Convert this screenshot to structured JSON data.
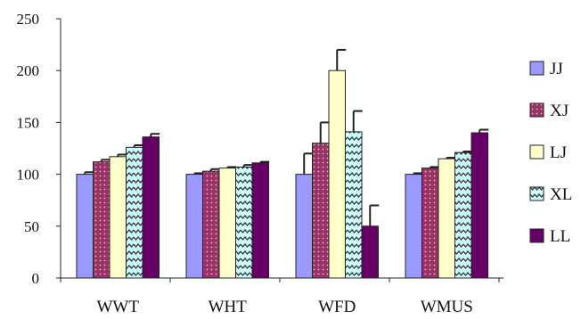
{
  "chart_data": {
    "type": "bar",
    "title": "",
    "xlabel": "",
    "ylabel": "",
    "ylim": [
      0,
      250
    ],
    "yticks": [
      0,
      50,
      100,
      150,
      200,
      250
    ],
    "grid": false,
    "legend_position": "right",
    "categories": [
      "WWT",
      "WHT",
      "WFD",
      "WMUS"
    ],
    "series": [
      {
        "name": "JJ",
        "color": "#9999ff",
        "pattern": "solid",
        "values": [
          100,
          100,
          100,
          100
        ],
        "errors": [
          2,
          1,
          20,
          1
        ]
      },
      {
        "name": "XJ",
        "color": "#993366",
        "pattern": "dots",
        "values": [
          112,
          103,
          130,
          106
        ],
        "errors": [
          2,
          2,
          20,
          1
        ]
      },
      {
        "name": "LJ",
        "color": "#ffffcc",
        "pattern": "solid",
        "values": [
          117,
          106,
          200,
          115
        ],
        "errors": [
          2,
          1,
          20,
          1
        ]
      },
      {
        "name": "XL",
        "color": "#ccffff",
        "pattern": "zigzag",
        "values": [
          126,
          107,
          141,
          121
        ],
        "errors": [
          2,
          2,
          20,
          1
        ]
      },
      {
        "name": "LL",
        "color": "#660066",
        "pattern": "solid",
        "values": [
          136,
          111,
          50,
          140
        ],
        "errors": [
          3,
          1,
          20,
          3
        ]
      }
    ]
  }
}
